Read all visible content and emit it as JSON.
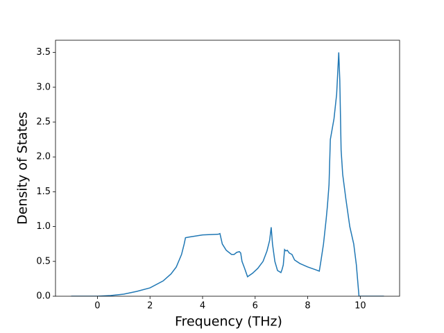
{
  "chart_data": {
    "type": "line",
    "xlabel": "Frequency (THz)",
    "ylabel": "Density of States",
    "series": [
      {
        "name": "DOS",
        "color": "#1f77b4",
        "x": [
          -1.0,
          0.0,
          0.5,
          1.0,
          1.5,
          2.0,
          2.5,
          2.8,
          3.0,
          3.2,
          3.3,
          3.35,
          3.5,
          4.0,
          4.6,
          4.66,
          4.75,
          4.9,
          5.1,
          5.2,
          5.3,
          5.4,
          5.45,
          5.5,
          5.6,
          5.71,
          5.9,
          6.1,
          6.3,
          6.45,
          6.55,
          6.61,
          6.66,
          6.75,
          6.85,
          6.98,
          7.02,
          7.07,
          7.12,
          7.17,
          7.22,
          7.3,
          7.4,
          7.5,
          7.7,
          8.0,
          8.3,
          8.44,
          8.5,
          8.6,
          8.7,
          8.75,
          8.81,
          8.86,
          9.0,
          9.1,
          9.18,
          9.22,
          9.27,
          9.33,
          9.45,
          9.6,
          9.75,
          9.85,
          9.95,
          10.9
        ],
        "values": [
          0.0,
          0.0,
          0.01,
          0.03,
          0.07,
          0.12,
          0.22,
          0.32,
          0.42,
          0.6,
          0.75,
          0.84,
          0.85,
          0.88,
          0.89,
          0.9,
          0.75,
          0.66,
          0.6,
          0.6,
          0.63,
          0.64,
          0.62,
          0.5,
          0.4,
          0.28,
          0.33,
          0.4,
          0.5,
          0.65,
          0.8,
          0.99,
          0.75,
          0.5,
          0.37,
          0.34,
          0.38,
          0.45,
          0.67,
          0.65,
          0.66,
          0.62,
          0.6,
          0.52,
          0.47,
          0.42,
          0.38,
          0.36,
          0.5,
          0.75,
          1.1,
          1.3,
          1.6,
          2.25,
          2.55,
          2.9,
          3.5,
          3.1,
          2.1,
          1.75,
          1.4,
          1.0,
          0.75,
          0.45,
          0.0,
          0.0
        ]
      }
    ],
    "xlim": [
      -1.595,
      11.495
    ],
    "xticks": [
      0,
      2,
      4,
      6,
      8,
      10
    ],
    "ylim": [
      0,
      3.675
    ],
    "yticks": [
      {
        "value": 0,
        "label": "0.0"
      },
      {
        "value": 0.5,
        "label": "0.5"
      },
      {
        "value": 1,
        "label": "1.0"
      },
      {
        "value": 1.5,
        "label": "1.5"
      },
      {
        "value": 2,
        "label": "2.0"
      },
      {
        "value": 2.5,
        "label": "2.5"
      },
      {
        "value": 3,
        "label": "3.0"
      },
      {
        "value": 3.5,
        "label": "3.5"
      }
    ],
    "grid": false
  }
}
